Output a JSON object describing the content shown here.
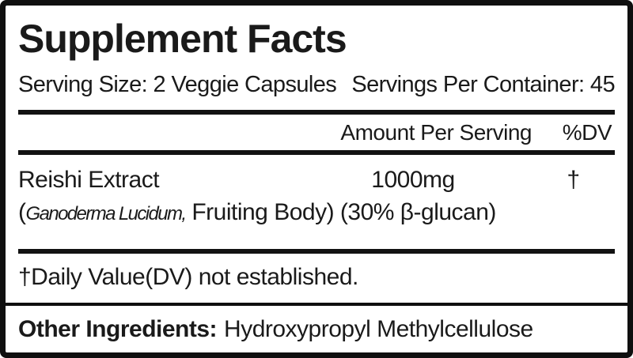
{
  "label": {
    "title": "Supplement Facts",
    "serving_size": "Serving Size: 2 Veggie Capsules",
    "servings_per_container": "Servings Per Container: 45",
    "header": {
      "amount": "Amount Per Serving",
      "dv": "%DV"
    },
    "rows": [
      {
        "name": "Reishi Extract",
        "amount": "1000mg",
        "dv": "†",
        "detail_prefix": "(",
        "detail_latin": "Ganoderma Lucidum,",
        "detail_rest": " Fruiting Body) (30% β-glucan)"
      }
    ],
    "footnote": "†Daily Value(DV) not established.",
    "other_ingredients": {
      "label": "Other Ingredients:",
      "value": "Hydroxypropyl Methylcellulose"
    },
    "colors": {
      "ink": "#1a1a1a",
      "border": "#0f0f0f",
      "background": "#ffffff"
    }
  }
}
